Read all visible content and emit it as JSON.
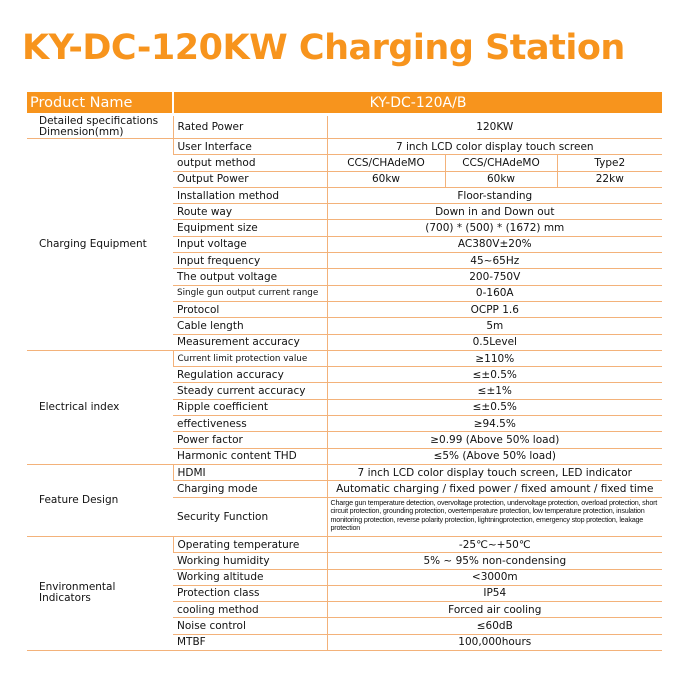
{
  "title": "KY-DC-120KW Charging Station",
  "header": {
    "label": "Product Name",
    "value": "KY-DC-120A/B"
  },
  "sections": [
    {
      "name": [
        "Detailed specifications",
        "Dimension(mm)"
      ],
      "rows": [
        {
          "label": "Rated Power",
          "values": [
            "120KW"
          ]
        }
      ]
    },
    {
      "name": [
        "Charging Equipment"
      ],
      "rows": [
        {
          "label": "User Interface",
          "values": [
            "7 inch LCD color display touch screen"
          ]
        },
        {
          "label": "output method",
          "values": [
            "CCS/CHAdeMO",
            "CCS/CHAdeMO",
            "Type2"
          ]
        },
        {
          "label": "Output Power",
          "values": [
            "60kw",
            "60kw",
            "22kw"
          ]
        },
        {
          "label": "Installation method",
          "values": [
            "Floor-standing"
          ]
        },
        {
          "label": "Route way",
          "values": [
            "Down in and Down out"
          ]
        },
        {
          "label": "Equipment size",
          "values": [
            "(700) * (500) * (1672) mm"
          ]
        },
        {
          "label": "Input voltage",
          "values": [
            "AC380V±20%"
          ]
        },
        {
          "label": "Input frequency",
          "values": [
            "45~65Hz"
          ]
        },
        {
          "label": "The output voltage",
          "values": [
            "200-750V"
          ]
        },
        {
          "label": "Single gun output current range",
          "values": [
            "0-160A"
          ]
        },
        {
          "label": "Protocol",
          "values": [
            "OCPP 1.6"
          ]
        },
        {
          "label": "Cable length",
          "values": [
            "5m"
          ]
        },
        {
          "label": "Measurement accuracy",
          "values": [
            "0.5Level"
          ]
        }
      ]
    },
    {
      "name": [
        "Electrical index"
      ],
      "rows": [
        {
          "label": "Current limit protection value",
          "values": [
            "≥110%"
          ]
        },
        {
          "label": "Regulation accuracy",
          "values": [
            "≤±0.5%"
          ]
        },
        {
          "label": "Steady current accuracy",
          "values": [
            "≤±1%"
          ]
        },
        {
          "label": "Ripple coefficient",
          "values": [
            "≤±0.5%"
          ]
        },
        {
          "label": "effectiveness",
          "values": [
            "≥94.5%"
          ]
        },
        {
          "label": "Power factor",
          "values": [
            "≥0.99 (Above 50% load)"
          ]
        },
        {
          "label": "Harmonic content THD",
          "values": [
            "≤5% (Above 50% load)"
          ]
        }
      ]
    },
    {
      "name": [
        "Feature Design"
      ],
      "rows": [
        {
          "label": "HDMI",
          "values": [
            "7 inch LCD color display touch screen, LED indicator"
          ]
        },
        {
          "label": "Charging mode",
          "values": [
            "Automatic charging / fixed power / fixed amount / fixed time"
          ]
        },
        {
          "label": "Security Function",
          "values": [
            "Charge gun temperature detection, overvoltage protection, undervoltage protection, overload protection, short circuit protection, grounding protection, overtemperature protection, low temperature protection, insulation monitoring protection, reverse polarity protection, lightningprotection, emergency stop protection, leakage protection"
          ]
        }
      ]
    },
    {
      "name": [
        "Environmental Indicators"
      ],
      "rows": [
        {
          "label": "Operating temperature",
          "values": [
            "-25℃~+50℃"
          ]
        },
        {
          "label": "Working humidity",
          "values": [
            "5% ~ 95% non-condensing"
          ]
        },
        {
          "label": "Working altitude",
          "values": [
            "<3000m"
          ]
        },
        {
          "label": "Protection class",
          "values": [
            "IP54"
          ]
        },
        {
          "label": "cooling method",
          "values": [
            "Forced air cooling"
          ]
        },
        {
          "label": "Noise control",
          "values": [
            "≤60dB"
          ]
        },
        {
          "label": "MTBF",
          "values": [
            "100,000hours"
          ]
        }
      ]
    }
  ]
}
